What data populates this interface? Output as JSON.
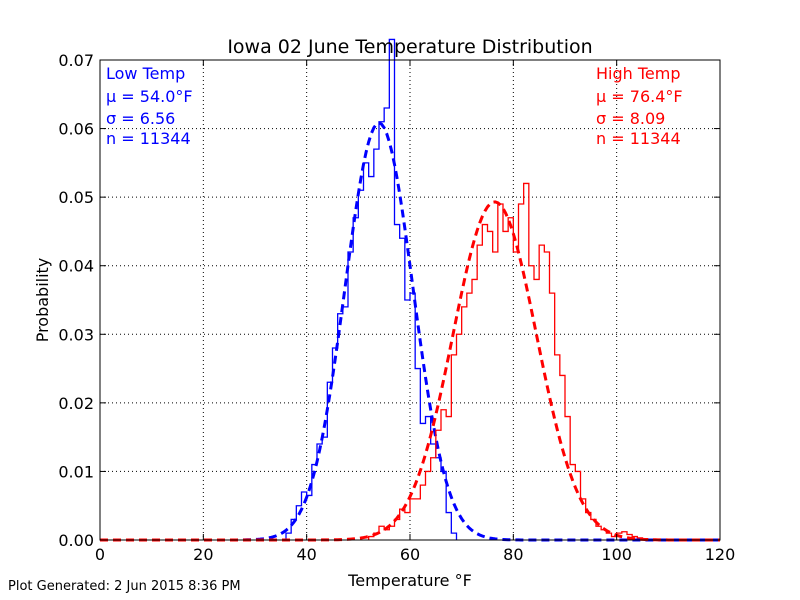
{
  "chart_data": {
    "type": "line",
    "title": "Iowa 02 June Temperature Distribution",
    "xlabel": "Temperature $^\\circ$F",
    "xlabel_display": "Temperature °F",
    "ylabel": "Probability",
    "xlim": [
      0,
      120
    ],
    "ylim": [
      0.0,
      0.07
    ],
    "xticks": [
      0,
      20,
      40,
      60,
      80,
      100,
      120
    ],
    "xtick_labels": [
      "0",
      "20",
      "40",
      "60",
      "80",
      "100",
      "120"
    ],
    "yticks": [
      0.0,
      0.01,
      0.02,
      0.03,
      0.04,
      0.05,
      0.06,
      0.07
    ],
    "ytick_labels": [
      "0.00",
      "0.01",
      "0.02",
      "0.03",
      "0.04",
      "0.05",
      "0.06",
      "0.07"
    ],
    "grid": true,
    "footer": "Plot Generated: 2 Jun 2015 8:36 PM",
    "series": [
      {
        "name": "Low Temp",
        "color": "#0000ff",
        "stats": {
          "mu": "54.0",
          "sigma": "6.56",
          "n": "11344"
        },
        "stat_lines": [
          "μ = 54.0°F",
          "σ = 6.56",
          "n = 11344"
        ],
        "histogram": {
          "bin_edges": [
            36,
            37,
            38,
            39,
            40,
            41,
            42,
            43,
            44,
            45,
            46,
            47,
            48,
            49,
            50,
            51,
            52,
            53,
            54,
            55,
            56,
            57,
            58,
            59,
            60,
            61,
            62,
            63,
            64,
            65,
            66,
            67,
            68
          ],
          "values": [
            0.001,
            0.003,
            0.005,
            0.007,
            0.0065,
            0.011,
            0.014,
            0.015,
            0.023,
            0.028,
            0.033,
            0.034,
            0.042,
            0.047,
            0.051,
            0.055,
            0.053,
            0.057,
            0.061,
            0.063,
            0.073,
            0.046,
            0.044,
            0.035,
            0.036,
            0.025,
            0.017,
            0.018,
            0.014,
            0.012,
            0.01,
            0.004,
            0.001
          ]
        },
        "fit": {
          "mean": 54.0,
          "sigma": 6.56
        }
      },
      {
        "name": "High Temp",
        "color": "#ff0000",
        "stats": {
          "mu": "76.4",
          "sigma": "8.09",
          "n": "11344"
        },
        "stat_lines": [
          "μ = 76.4°F",
          "σ = 8.09",
          "n = 11344"
        ],
        "histogram": {
          "bin_edges": [
            52,
            53,
            54,
            55,
            56,
            57,
            58,
            59,
            60,
            61,
            62,
            63,
            64,
            65,
            66,
            67,
            68,
            69,
            70,
            71,
            72,
            73,
            74,
            75,
            76,
            77,
            78,
            79,
            80,
            81,
            82,
            83,
            84,
            85,
            86,
            87,
            88,
            89,
            90,
            91,
            92,
            93,
            94,
            95,
            96,
            97,
            98,
            99,
            100,
            101,
            102,
            103,
            104,
            105
          ],
          "values": [
            0.0005,
            0.001,
            0.002,
            0.0015,
            0.002,
            0.003,
            0.0045,
            0.004,
            0.006,
            0.006,
            0.008,
            0.01,
            0.012,
            0.016,
            0.019,
            0.018,
            0.027,
            0.03,
            0.034,
            0.036,
            0.038,
            0.043,
            0.046,
            0.045,
            0.042,
            0.049,
            0.045,
            0.047,
            0.042,
            0.049,
            0.052,
            0.04,
            0.038,
            0.043,
            0.042,
            0.036,
            0.027,
            0.024,
            0.018,
            0.011,
            0.01,
            0.006,
            0.004,
            0.003,
            0.002,
            0.0015,
            0.001,
            0.0005,
            0.001,
            0.0012,
            0.0008,
            0.0005,
            0.0003,
            0.0002
          ]
        },
        "fit": {
          "mean": 76.4,
          "sigma": 8.09
        }
      }
    ]
  }
}
